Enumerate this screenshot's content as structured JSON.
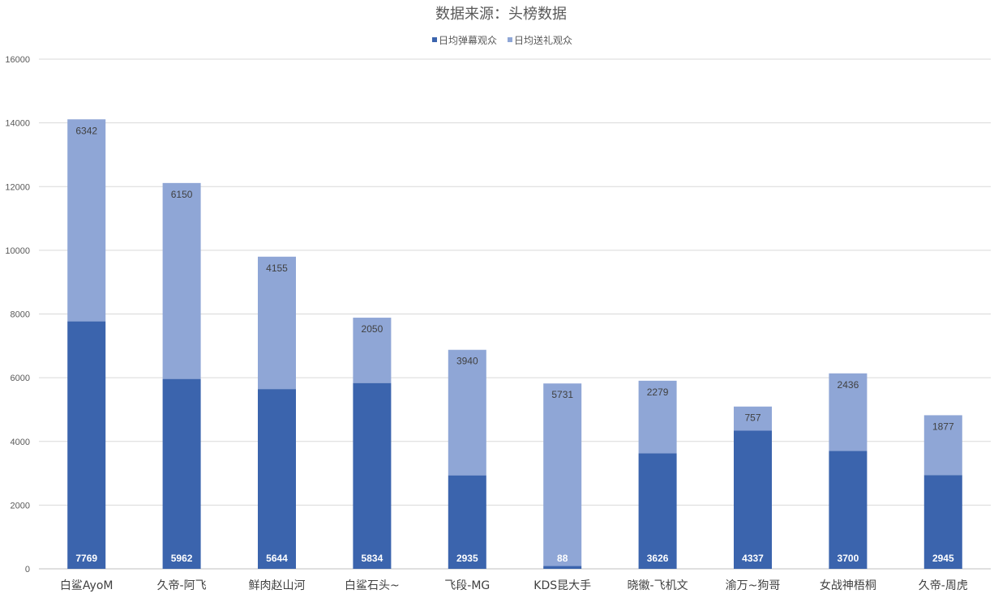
{
  "chart_data": {
    "type": "bar",
    "stacked": true,
    "title": "数据来源：头榜数据",
    "xlabel": "",
    "ylabel": "",
    "categories": [
      "白鲨AyoM",
      "久帝-阿飞",
      "鲜肉赵山河",
      "白鲨石头~",
      "飞段-MG",
      "KDS昆大手",
      "晓徽-飞机文",
      "渝万~狗哥",
      "女战神梧桐",
      "久帝-周虎"
    ],
    "series": [
      {
        "name": "日均弹幕观众",
        "color": "#3b64ad",
        "values": [
          7769,
          5962,
          5644,
          5834,
          2935,
          88,
          3626,
          4337,
          3700,
          2945
        ]
      },
      {
        "name": "日均送礼观众",
        "color": "#8fa6d6",
        "values": [
          6342,
          6150,
          4155,
          2050,
          3940,
          5731,
          2279,
          757,
          2436,
          1877
        ]
      }
    ],
    "ylim": [
      0,
      16000
    ],
    "yticks": [
      "0",
      "2000",
      "4000",
      "6000",
      "8000",
      "10000",
      "12000",
      "14000",
      "16000"
    ],
    "grid": true,
    "legend_position": "top-center",
    "data_labels": true
  }
}
